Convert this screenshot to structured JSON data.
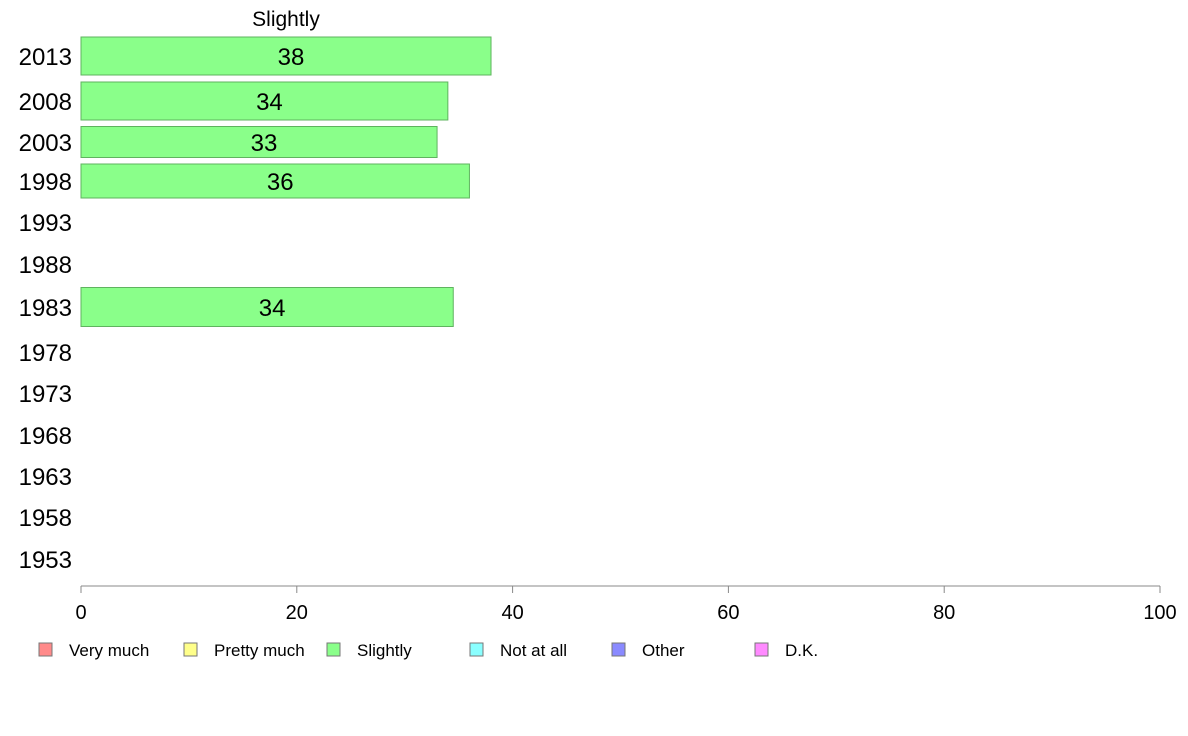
{
  "chart_data": {
    "type": "bar",
    "orientation": "horizontal",
    "title": "Slightly",
    "categories": [
      "2013",
      "2008",
      "2003",
      "1998",
      "1993",
      "1988",
      "1983",
      "1978",
      "1973",
      "1968",
      "1963",
      "1958",
      "1953"
    ],
    "series": [
      {
        "name": "Slightly",
        "values": [
          38,
          34,
          33,
          36,
          null,
          null,
          34.5,
          null,
          null,
          null,
          null,
          null,
          null
        ],
        "labels": [
          "38",
          "34",
          "33",
          "36",
          "",
          "",
          "34",
          "",
          "",
          "",
          "",
          "",
          ""
        ]
      }
    ],
    "xlim": [
      0,
      100
    ],
    "xticks": [
      "0",
      "20",
      "40",
      "60",
      "80",
      "100"
    ],
    "xlabel": "",
    "ylabel": "",
    "grid": false,
    "legend_position": "bottom",
    "legend": [
      {
        "label": "Very much",
        "color": "#ff8a8a"
      },
      {
        "label": "Pretty much",
        "color": "#ffff8a"
      },
      {
        "label": "Slightly",
        "color": "#8aff8a"
      },
      {
        "label": "Not at all",
        "color": "#8affff"
      },
      {
        "label": "Other",
        "color": "#8a8aff"
      },
      {
        "label": "D.K.",
        "color": "#ff8aff"
      }
    ],
    "bar_color": "#8aff8a",
    "bar_edge_color": "#5fb35f"
  }
}
